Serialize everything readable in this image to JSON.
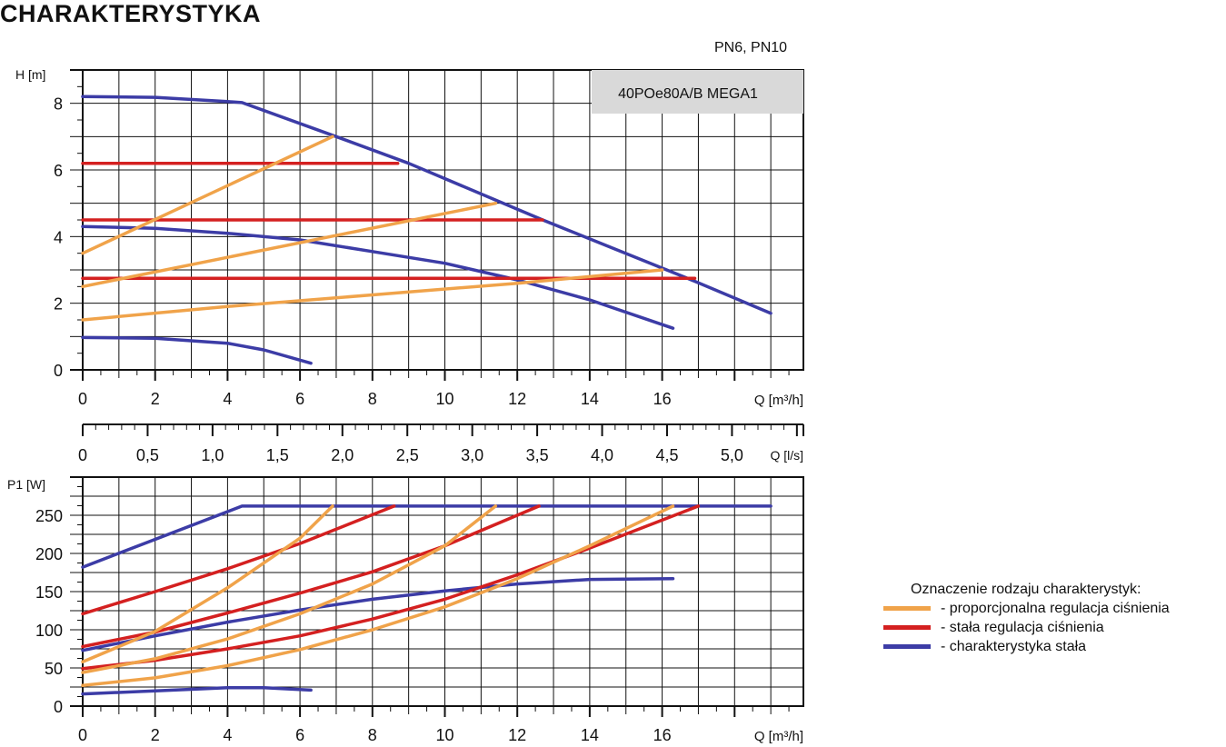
{
  "title": "CHARAKTERYSTYKA",
  "pressure_class": "PN6, PN10",
  "model_label": "40POe80A/B MEGA1",
  "colors": {
    "proportional": "#f0a34a",
    "constant_pressure": "#d42020",
    "constant_curve": "#3c3ca6"
  },
  "legend": {
    "title": "Oznaczenie rodzaju charakterystyk:",
    "items": [
      {
        "label": "- proporcjonalna regulacja ciśnienia",
        "color_key": "proportional"
      },
      {
        "label": "- stała regulacja ciśnienia",
        "color_key": "constant_pressure"
      },
      {
        "label": "- charakterystyka stała",
        "color_key": "constant_curve"
      }
    ]
  },
  "chart_data": [
    {
      "type": "line",
      "ylabel": "H [m]",
      "xlabel": "Q [m³/h]",
      "xlim": [
        0,
        19.9
      ],
      "ylim": [
        0,
        9
      ],
      "xticks": [
        0,
        2,
        4,
        6,
        8,
        10,
        12,
        14,
        16
      ],
      "yticks": [
        0,
        2,
        4,
        6,
        8
      ],
      "grid": true,
      "series": [
        {
          "color_key": "constant_curve",
          "points": [
            [
              0,
              8.2
            ],
            [
              2,
              8.18
            ],
            [
              4,
              8.05
            ],
            [
              4.4,
              8.02
            ],
            [
              7,
              7.0
            ],
            [
              9,
              6.2
            ],
            [
              12.7,
              4.5
            ],
            [
              16.7,
              2.75
            ],
            [
              19,
              1.7
            ]
          ]
        },
        {
          "color_key": "constant_curve",
          "points": [
            [
              0,
              4.3
            ],
            [
              2,
              4.25
            ],
            [
              4,
              4.1
            ],
            [
              6,
              3.9
            ],
            [
              8,
              3.55
            ],
            [
              10,
              3.2
            ],
            [
              12,
              2.7
            ],
            [
              14,
              2.1
            ],
            [
              16.3,
              1.25
            ]
          ]
        },
        {
          "color_key": "constant_curve",
          "points": [
            [
              0,
              0.97
            ],
            [
              2,
              0.95
            ],
            [
              4,
              0.8
            ],
            [
              5,
              0.6
            ],
            [
              6.3,
              0.2
            ]
          ]
        },
        {
          "color_key": "constant_pressure",
          "points": [
            [
              0,
              6.2
            ],
            [
              8.7,
              6.2
            ]
          ]
        },
        {
          "color_key": "constant_pressure",
          "points": [
            [
              0,
              4.5
            ],
            [
              12.7,
              4.5
            ]
          ]
        },
        {
          "color_key": "constant_pressure",
          "points": [
            [
              0,
              2.75
            ],
            [
              16.9,
              2.75
            ]
          ]
        },
        {
          "color_key": "proportional",
          "points": [
            [
              0,
              3.5
            ],
            [
              6.9,
              7.0
            ]
          ]
        },
        {
          "color_key": "proportional",
          "points": [
            [
              0,
              2.5
            ],
            [
              11.4,
              5.0
            ]
          ]
        },
        {
          "color_key": "proportional",
          "points": [
            [
              0,
              1.5
            ],
            [
              4,
              1.9
            ],
            [
              8,
              2.25
            ],
            [
              12,
              2.6
            ],
            [
              16,
              3.0
            ]
          ]
        }
      ]
    },
    {
      "type": "axis",
      "xlabel": "Q [l/s]",
      "xlim": [
        0,
        5.55
      ],
      "xticks": [
        "0",
        "0,5",
        "1,0",
        "1,5",
        "2,0",
        "2,5",
        "3,0",
        "3,5",
        "4,0",
        "4,5",
        "5,0"
      ]
    },
    {
      "type": "line",
      "ylabel": "P1 [W]",
      "xlabel": "Q [m³/h]",
      "xlim": [
        0,
        19.9
      ],
      "ylim": [
        0,
        300
      ],
      "xticks": [
        0,
        2,
        4,
        6,
        8,
        10,
        12,
        14,
        16
      ],
      "yticks": [
        0,
        50,
        100,
        150,
        200,
        250
      ],
      "grid": true,
      "series": [
        {
          "color_key": "constant_curve",
          "points": [
            [
              0,
              182
            ],
            [
              4.4,
              262
            ],
            [
              19,
              262
            ]
          ]
        },
        {
          "color_key": "constant_curve",
          "points": [
            [
              0,
              73
            ],
            [
              2,
              92
            ],
            [
              4,
              110
            ],
            [
              6,
              126
            ],
            [
              8,
              140
            ],
            [
              10,
              151
            ],
            [
              12,
              160
            ],
            [
              14,
              166
            ],
            [
              16.3,
              167
            ]
          ]
        },
        {
          "color_key": "constant_curve",
          "points": [
            [
              0,
              16
            ],
            [
              2,
              20
            ],
            [
              4,
              24
            ],
            [
              5,
              24
            ],
            [
              6.3,
              21
            ]
          ]
        },
        {
          "color_key": "constant_pressure",
          "points": [
            [
              0,
              121
            ],
            [
              2,
              150
            ],
            [
              4,
              180
            ],
            [
              6,
              213
            ],
            [
              8.6,
              262
            ]
          ]
        },
        {
          "color_key": "constant_pressure",
          "points": [
            [
              0,
              78
            ],
            [
              2,
              97
            ],
            [
              4,
              122
            ],
            [
              6,
              148
            ],
            [
              8,
              176
            ],
            [
              10,
              210
            ],
            [
              12.6,
              262
            ]
          ]
        },
        {
          "color_key": "constant_pressure",
          "points": [
            [
              0,
              49
            ],
            [
              2,
              60
            ],
            [
              4,
              75
            ],
            [
              6,
              92
            ],
            [
              8,
              114
            ],
            [
              10,
              140
            ],
            [
              12,
              172
            ],
            [
              14,
              207
            ],
            [
              17,
              262
            ]
          ]
        },
        {
          "color_key": "proportional",
          "points": [
            [
              0,
              58
            ],
            [
              2,
              98
            ],
            [
              4,
              155
            ],
            [
              6,
              220
            ],
            [
              6.9,
              262
            ]
          ]
        },
        {
          "color_key": "proportional",
          "points": [
            [
              0,
              44
            ],
            [
              2,
              62
            ],
            [
              4,
              88
            ],
            [
              6,
              121
            ],
            [
              8,
              160
            ],
            [
              10,
              210
            ],
            [
              11.4,
              262
            ]
          ]
        },
        {
          "color_key": "proportional",
          "points": [
            [
              0,
              27
            ],
            [
              2,
              37
            ],
            [
              4,
              53
            ],
            [
              6,
              74
            ],
            [
              8,
              100
            ],
            [
              10,
              130
            ],
            [
              12,
              167
            ],
            [
              14,
              210
            ],
            [
              16.3,
              262
            ]
          ]
        }
      ]
    }
  ]
}
